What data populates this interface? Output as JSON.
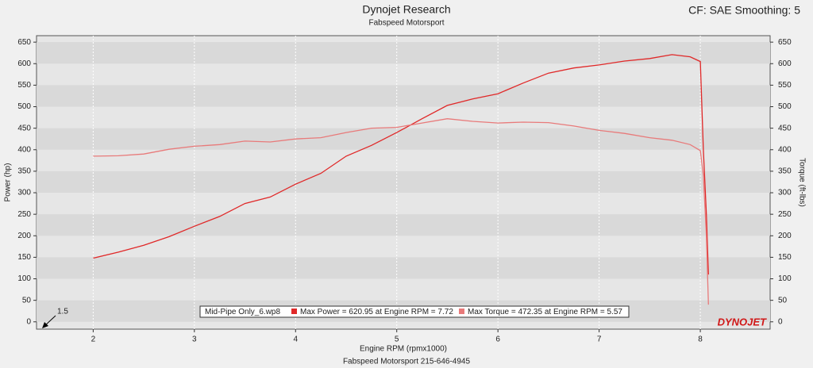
{
  "chart_data": {
    "type": "line",
    "title": "Dynojet Research",
    "subtitle": "Fabspeed Motorsport",
    "corner_note": "CF: SAE Smoothing: 5",
    "x_label": "Engine RPM (rpmx1000)",
    "y_label": "Power (hp)",
    "y2_label": "Torque (ft-lbs)",
    "footer": "Fabspeed Motorsport 215-646-4945",
    "logo": "DYNOJET",
    "corner_annotation": "1.5",
    "legend_entries": [
      "Mid-Pipe Only_6.wp8",
      "Max Power = 620.95 at Engine RPM = 7.72",
      "Max Torque = 472.35 at Engine RPM = 5.57"
    ],
    "x": [
      2.0,
      2.25,
      2.5,
      2.75,
      3.0,
      3.25,
      3.5,
      3.75,
      4.0,
      4.25,
      4.5,
      4.75,
      5.0,
      5.25,
      5.5,
      5.75,
      6.0,
      6.25,
      6.5,
      6.75,
      7.0,
      7.25,
      7.5,
      7.72,
      7.9,
      8.0,
      8.03,
      8.06,
      8.08
    ],
    "series": [
      {
        "color": "#e02828",
        "values": [
          148,
          162,
          178,
          198,
          222,
          245,
          275,
          290,
          320,
          345,
          385,
          410,
          440,
          472,
          503,
          518,
          530,
          555,
          578,
          590,
          597,
          606,
          612,
          621,
          616,
          605,
          400,
          250,
          110
        ]
      },
      {
        "color": "#e87a7a",
        "axis": "y2",
        "values": [
          385,
          386,
          390,
          401,
          408,
          412,
          420,
          418,
          425,
          428,
          440,
          450,
          452,
          462,
          472,
          466,
          462,
          464,
          463,
          455,
          445,
          438,
          428,
          422,
          412,
          398,
          340,
          200,
          40
        ]
      }
    ],
    "xlim": [
      1.44,
      8.69
    ],
    "xticks": [
      2,
      3,
      4,
      5,
      6,
      7,
      8
    ],
    "ylim": [
      -17,
      665
    ],
    "yticks": [
      0,
      50,
      100,
      150,
      200,
      250,
      300,
      350,
      400,
      450,
      500,
      550,
      600,
      650
    ],
    "y2lim": [
      -17,
      665
    ],
    "y2ticks": [
      0,
      50,
      100,
      150,
      200,
      250,
      300,
      350,
      400,
      450,
      500,
      550,
      600,
      650
    ],
    "grid": true
  }
}
